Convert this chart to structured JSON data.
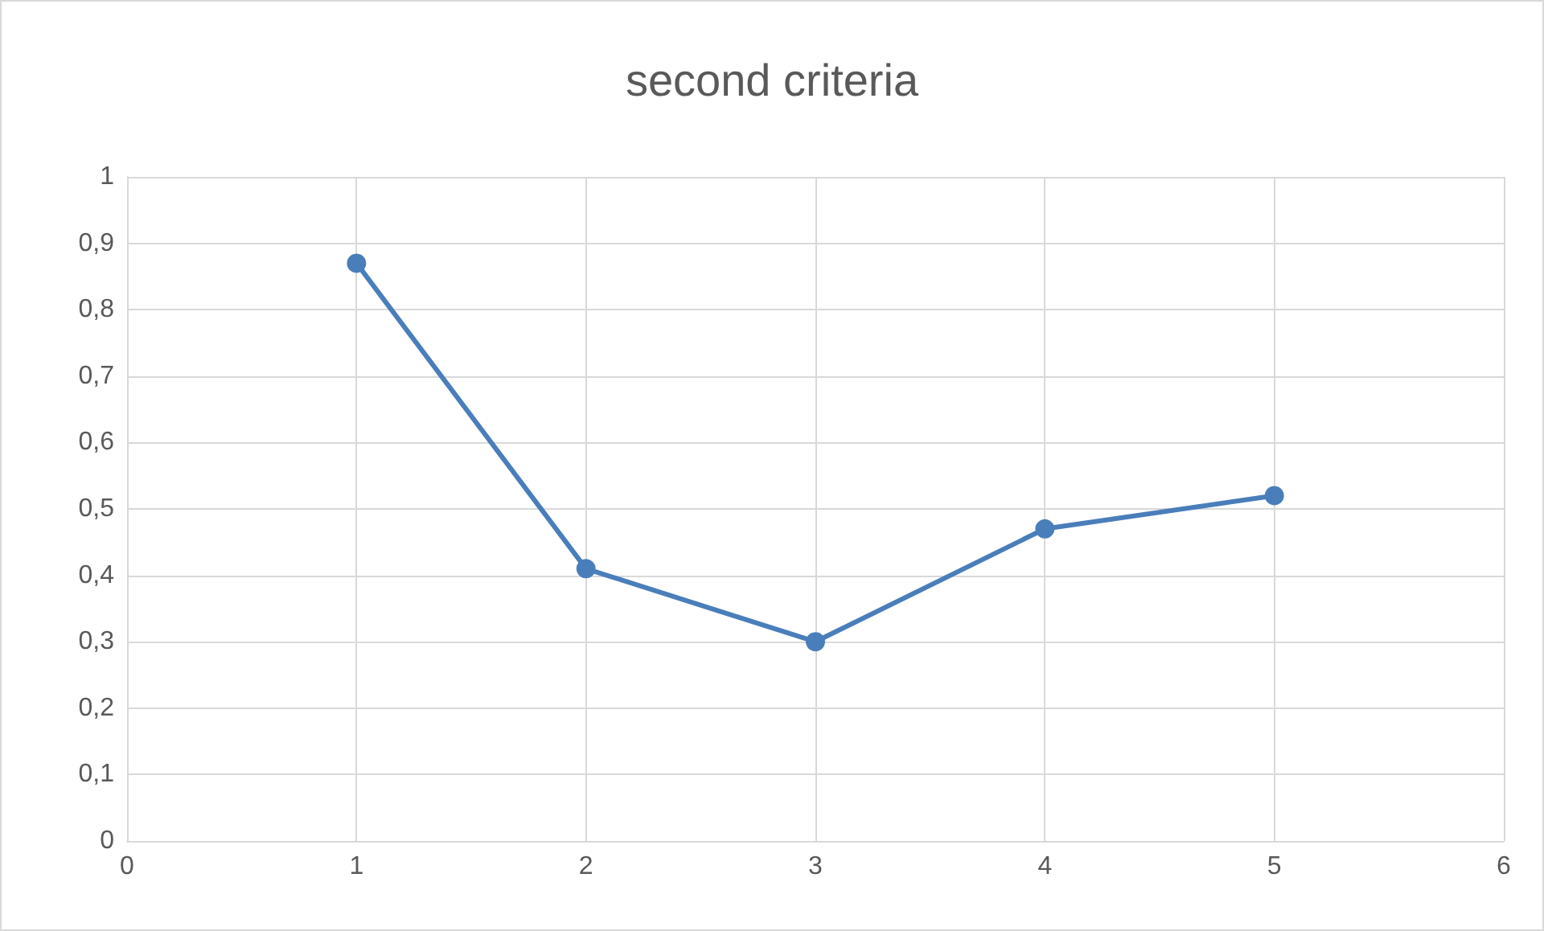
{
  "chart_data": {
    "type": "line",
    "title": "second criteria",
    "x": [
      1,
      2,
      3,
      4,
      5
    ],
    "series": [
      {
        "color": "#4a7ebb",
        "values": [
          0.87,
          0.41,
          0.3,
          0.47,
          0.52
        ]
      }
    ],
    "xlim": [
      0,
      6
    ],
    "xticks": [
      0,
      1,
      2,
      3,
      4,
      5,
      6
    ],
    "ylim": [
      0,
      1
    ],
    "yticks": [
      0,
      {
        "value": 0.1,
        "label": "0,1"
      },
      {
        "value": 0.2,
        "label": "0,2"
      },
      {
        "value": 0.3,
        "label": "0,3"
      },
      {
        "value": 0.4,
        "label": "0,4"
      },
      {
        "value": 0.5,
        "label": "0,5"
      },
      {
        "value": 0.6,
        "label": "0,6"
      },
      {
        "value": 0.7,
        "label": "0,7"
      },
      {
        "value": 0.8,
        "label": "0,8"
      },
      {
        "value": 0.9,
        "label": "0,9"
      },
      1
    ],
    "grid": true,
    "marker": "circle",
    "line_style": "solid"
  }
}
